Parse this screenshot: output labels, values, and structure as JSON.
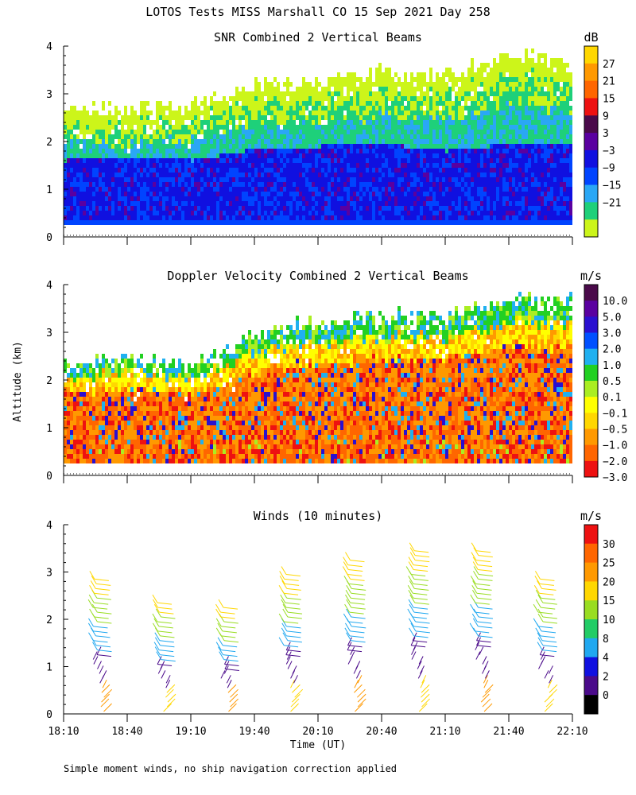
{
  "figure": {
    "title": "LOTOS Tests MISS Marshall CO  15 Sep 2021 Day 258",
    "ylabel": "Altitude (km)",
    "xlabel": "Time (UT)",
    "footnote": "Simple moment winds, no ship navigation correction applied"
  },
  "chart_data": [
    {
      "type": "heatmap",
      "title": "SNR Combined 2 Vertical Beams",
      "xlabel": "Time (UT)",
      "ylabel": "Altitude (km)",
      "xticks": [
        "18:10",
        "18:40",
        "19:10",
        "19:40",
        "20:10",
        "20:40",
        "21:10",
        "21:40",
        "22:10"
      ],
      "xlim_minutes": [
        0,
        240
      ],
      "yticks": [
        "0",
        "1",
        "2",
        "3",
        "4"
      ],
      "ylim": [
        0,
        4
      ],
      "colorbar": {
        "unit": "dB",
        "labels": [
          "27",
          "21",
          "15",
          "9",
          "3",
          "−3",
          "−9",
          "−15",
          "−21"
        ],
        "colors": [
          "#ffd700",
          "#ff9900",
          "#ff6600",
          "#ee1111",
          "#4a0a4a",
          "#5a00a0",
          "#1010e0",
          "#0044ff",
          "#2aa7f5",
          "#1ed07a",
          "#ccf51a"
        ]
      },
      "profile": {
        "time_min": [
          0,
          30,
          60,
          90,
          120,
          150,
          180,
          210,
          240
        ],
        "top_km": [
          2.7,
          2.6,
          2.75,
          3.1,
          3.2,
          3.4,
          3.35,
          3.8,
          3.6
        ],
        "strong_km": [
          1.55,
          1.6,
          1.55,
          1.8,
          1.85,
          1.9,
          1.75,
          1.9,
          1.85
        ],
        "base_km": 0.25
      }
    },
    {
      "type": "heatmap",
      "title": "Doppler Velocity Combined 2 Vertical Beams",
      "xlabel": "Time (UT)",
      "ylabel": "Altitude (km)",
      "xticks": [
        "18:10",
        "18:40",
        "19:10",
        "19:40",
        "20:10",
        "20:40",
        "21:10",
        "21:40",
        "22:10"
      ],
      "xlim_minutes": [
        0,
        240
      ],
      "yticks": [
        "0",
        "1",
        "2",
        "3",
        "4"
      ],
      "ylim": [
        0,
        4
      ],
      "colorbar": {
        "unit": "m/s",
        "labels": [
          "10.0",
          "5.0",
          "3.0",
          "2.0",
          "1.0",
          "0.5",
          "0.1",
          "−0.1",
          "−0.5",
          "−1.0",
          "−2.0",
          "−3.0"
        ],
        "colors": [
          "#4a0a4a",
          "#5a00a0",
          "#2a10d0",
          "#0050ff",
          "#20b0f0",
          "#22d022",
          "#aaee22",
          "#ffff00",
          "#ffd700",
          "#ff9900",
          "#ff6600",
          "#ee1111"
        ]
      },
      "profile": {
        "time_min": [
          0,
          30,
          60,
          90,
          120,
          150,
          180,
          210,
          240
        ],
        "top_km": [
          2.4,
          2.4,
          2.3,
          2.9,
          3.2,
          3.3,
          3.3,
          3.7,
          3.6
        ],
        "base_km": 0.25
      }
    },
    {
      "type": "scatter",
      "subtype": "wind-barbs",
      "title": "Winds (10 minutes)",
      "xlabel": "Time (UT)",
      "ylabel": "Altitude (km)",
      "xticks": [
        "18:10",
        "18:40",
        "19:10",
        "19:40",
        "20:10",
        "20:40",
        "21:10",
        "21:40",
        "22:10"
      ],
      "xlim_minutes": [
        0,
        240
      ],
      "yticks": [
        "0",
        "1",
        "2",
        "3",
        "4"
      ],
      "ylim": [
        0,
        4
      ],
      "colorbar": {
        "unit": "m/s",
        "labels": [
          "30",
          "25",
          "20",
          "15",
          "10",
          "8",
          "4",
          "2",
          "0"
        ],
        "colors": [
          "#ee1111",
          "#ff6600",
          "#ff9900",
          "#ffd700",
          "#99dd22",
          "#22cc66",
          "#20a8f0",
          "#1010e0",
          "#4a0a8a",
          "#000000"
        ]
      },
      "profiles": [
        {
          "time_min": 15,
          "top_km": 2.9
        },
        {
          "time_min": 45,
          "top_km": 2.45
        },
        {
          "time_min": 75,
          "top_km": 2.35
        },
        {
          "time_min": 105,
          "top_km": 3.0
        },
        {
          "time_min": 135,
          "top_km": 3.3
        },
        {
          "time_min": 165,
          "top_km": 3.5
        },
        {
          "time_min": 195,
          "top_km": 3.5
        },
        {
          "time_min": 225,
          "top_km": 2.9
        }
      ]
    }
  ]
}
